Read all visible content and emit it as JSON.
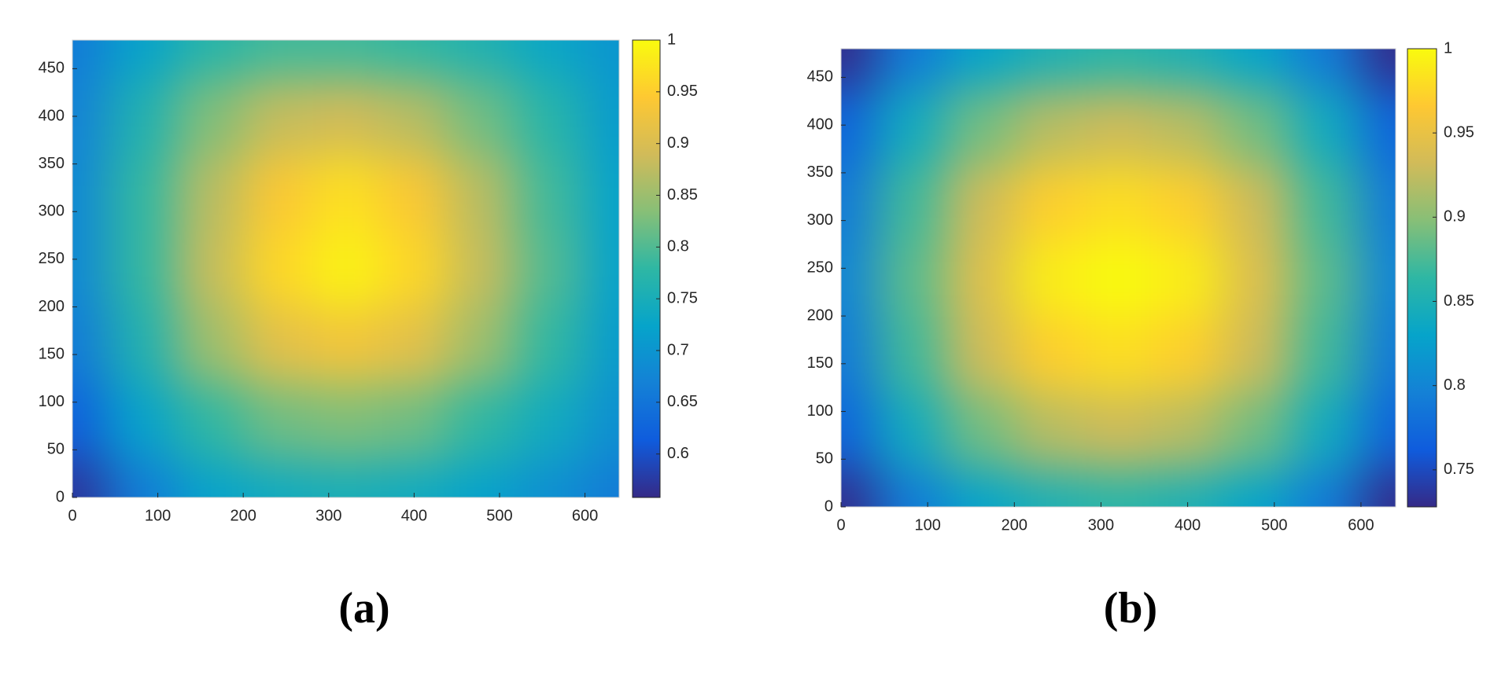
{
  "chart_data": [
    {
      "type": "heatmap",
      "caption": "(a)",
      "colormap": "parula",
      "x": [
        0,
        80,
        160,
        240,
        320,
        400,
        480,
        560,
        640
      ],
      "y": [
        0,
        80,
        160,
        240,
        320,
        400,
        480
      ],
      "z": [
        [
          0.57,
          0.66,
          0.72,
          0.74,
          0.75,
          0.74,
          0.72,
          0.69,
          0.66
        ],
        [
          0.62,
          0.72,
          0.78,
          0.82,
          0.83,
          0.82,
          0.78,
          0.74,
          0.69
        ],
        [
          0.66,
          0.76,
          0.85,
          0.91,
          0.93,
          0.91,
          0.85,
          0.78,
          0.71
        ],
        [
          0.68,
          0.78,
          0.88,
          0.96,
          0.99,
          0.96,
          0.88,
          0.8,
          0.72
        ],
        [
          0.68,
          0.78,
          0.87,
          0.94,
          0.97,
          0.94,
          0.87,
          0.79,
          0.72
        ],
        [
          0.67,
          0.76,
          0.83,
          0.88,
          0.89,
          0.87,
          0.82,
          0.77,
          0.71
        ],
        [
          0.66,
          0.72,
          0.77,
          0.79,
          0.79,
          0.78,
          0.76,
          0.73,
          0.7
        ]
      ],
      "xlim": [
        0,
        640
      ],
      "ylim": [
        0,
        480
      ],
      "xticks": [
        0,
        100,
        200,
        300,
        400,
        500,
        600
      ],
      "yticks": [
        0,
        50,
        100,
        150,
        200,
        250,
        300,
        350,
        400,
        450
      ],
      "clim": [
        0.558,
        1
      ],
      "cticks": [
        0.6,
        0.65,
        0.7,
        0.75,
        0.8,
        0.85,
        0.9,
        0.95,
        1
      ]
    },
    {
      "type": "heatmap",
      "caption": "(b)",
      "colormap": "parula",
      "x": [
        0,
        80,
        160,
        240,
        320,
        400,
        480,
        560,
        640
      ],
      "y": [
        0,
        80,
        160,
        240,
        320,
        400,
        480
      ],
      "z": [
        [
          0.73,
          0.79,
          0.83,
          0.85,
          0.86,
          0.85,
          0.83,
          0.79,
          0.73
        ],
        [
          0.77,
          0.84,
          0.89,
          0.92,
          0.93,
          0.92,
          0.89,
          0.84,
          0.77
        ],
        [
          0.79,
          0.87,
          0.93,
          0.97,
          0.98,
          0.97,
          0.93,
          0.87,
          0.79
        ],
        [
          0.8,
          0.88,
          0.94,
          0.99,
          1.0,
          0.99,
          0.94,
          0.88,
          0.8
        ],
        [
          0.79,
          0.87,
          0.93,
          0.97,
          0.98,
          0.97,
          0.93,
          0.87,
          0.79
        ],
        [
          0.77,
          0.84,
          0.89,
          0.92,
          0.93,
          0.92,
          0.89,
          0.84,
          0.77
        ],
        [
          0.73,
          0.79,
          0.83,
          0.85,
          0.86,
          0.85,
          0.83,
          0.79,
          0.73
        ]
      ],
      "xlim": [
        0,
        640
      ],
      "ylim": [
        0,
        480
      ],
      "xticks": [
        0,
        100,
        200,
        300,
        400,
        500,
        600
      ],
      "yticks": [
        0,
        50,
        100,
        150,
        200,
        250,
        300,
        350,
        400,
        450
      ],
      "clim": [
        0.728,
        1
      ],
      "cticks": [
        0.75,
        0.8,
        0.85,
        0.9,
        0.95,
        1
      ]
    }
  ]
}
